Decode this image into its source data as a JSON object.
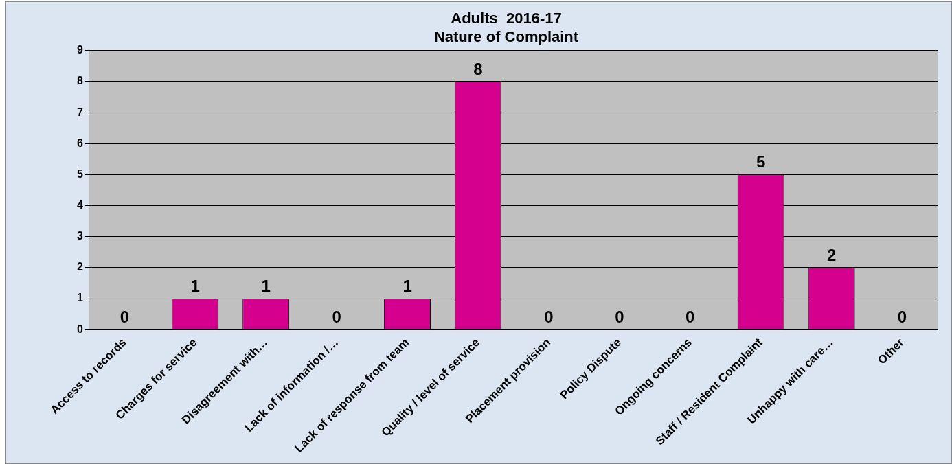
{
  "chart_data": {
    "type": "bar",
    "title": "Adults  2016-17",
    "subtitle": "Nature of Complaint",
    "categories": [
      "Access to records",
      "Charges for service",
      "Disagreement with…",
      "Lack of information /…",
      "Lack of response from team",
      "Quality / level of service",
      "Placement provision",
      "Policy Dispute",
      "Ongoing concerns",
      "Staff / Resident Complaint",
      "Unhappy with care…",
      "Other"
    ],
    "values": [
      0,
      1,
      1,
      0,
      1,
      8,
      0,
      0,
      0,
      5,
      2,
      0
    ],
    "color": "#d6008f",
    "ylim": [
      0,
      9
    ],
    "yticks": [
      0,
      1,
      2,
      3,
      4,
      5,
      6,
      7,
      8,
      9
    ],
    "grid": "y",
    "data_labels": true,
    "legend": false
  }
}
